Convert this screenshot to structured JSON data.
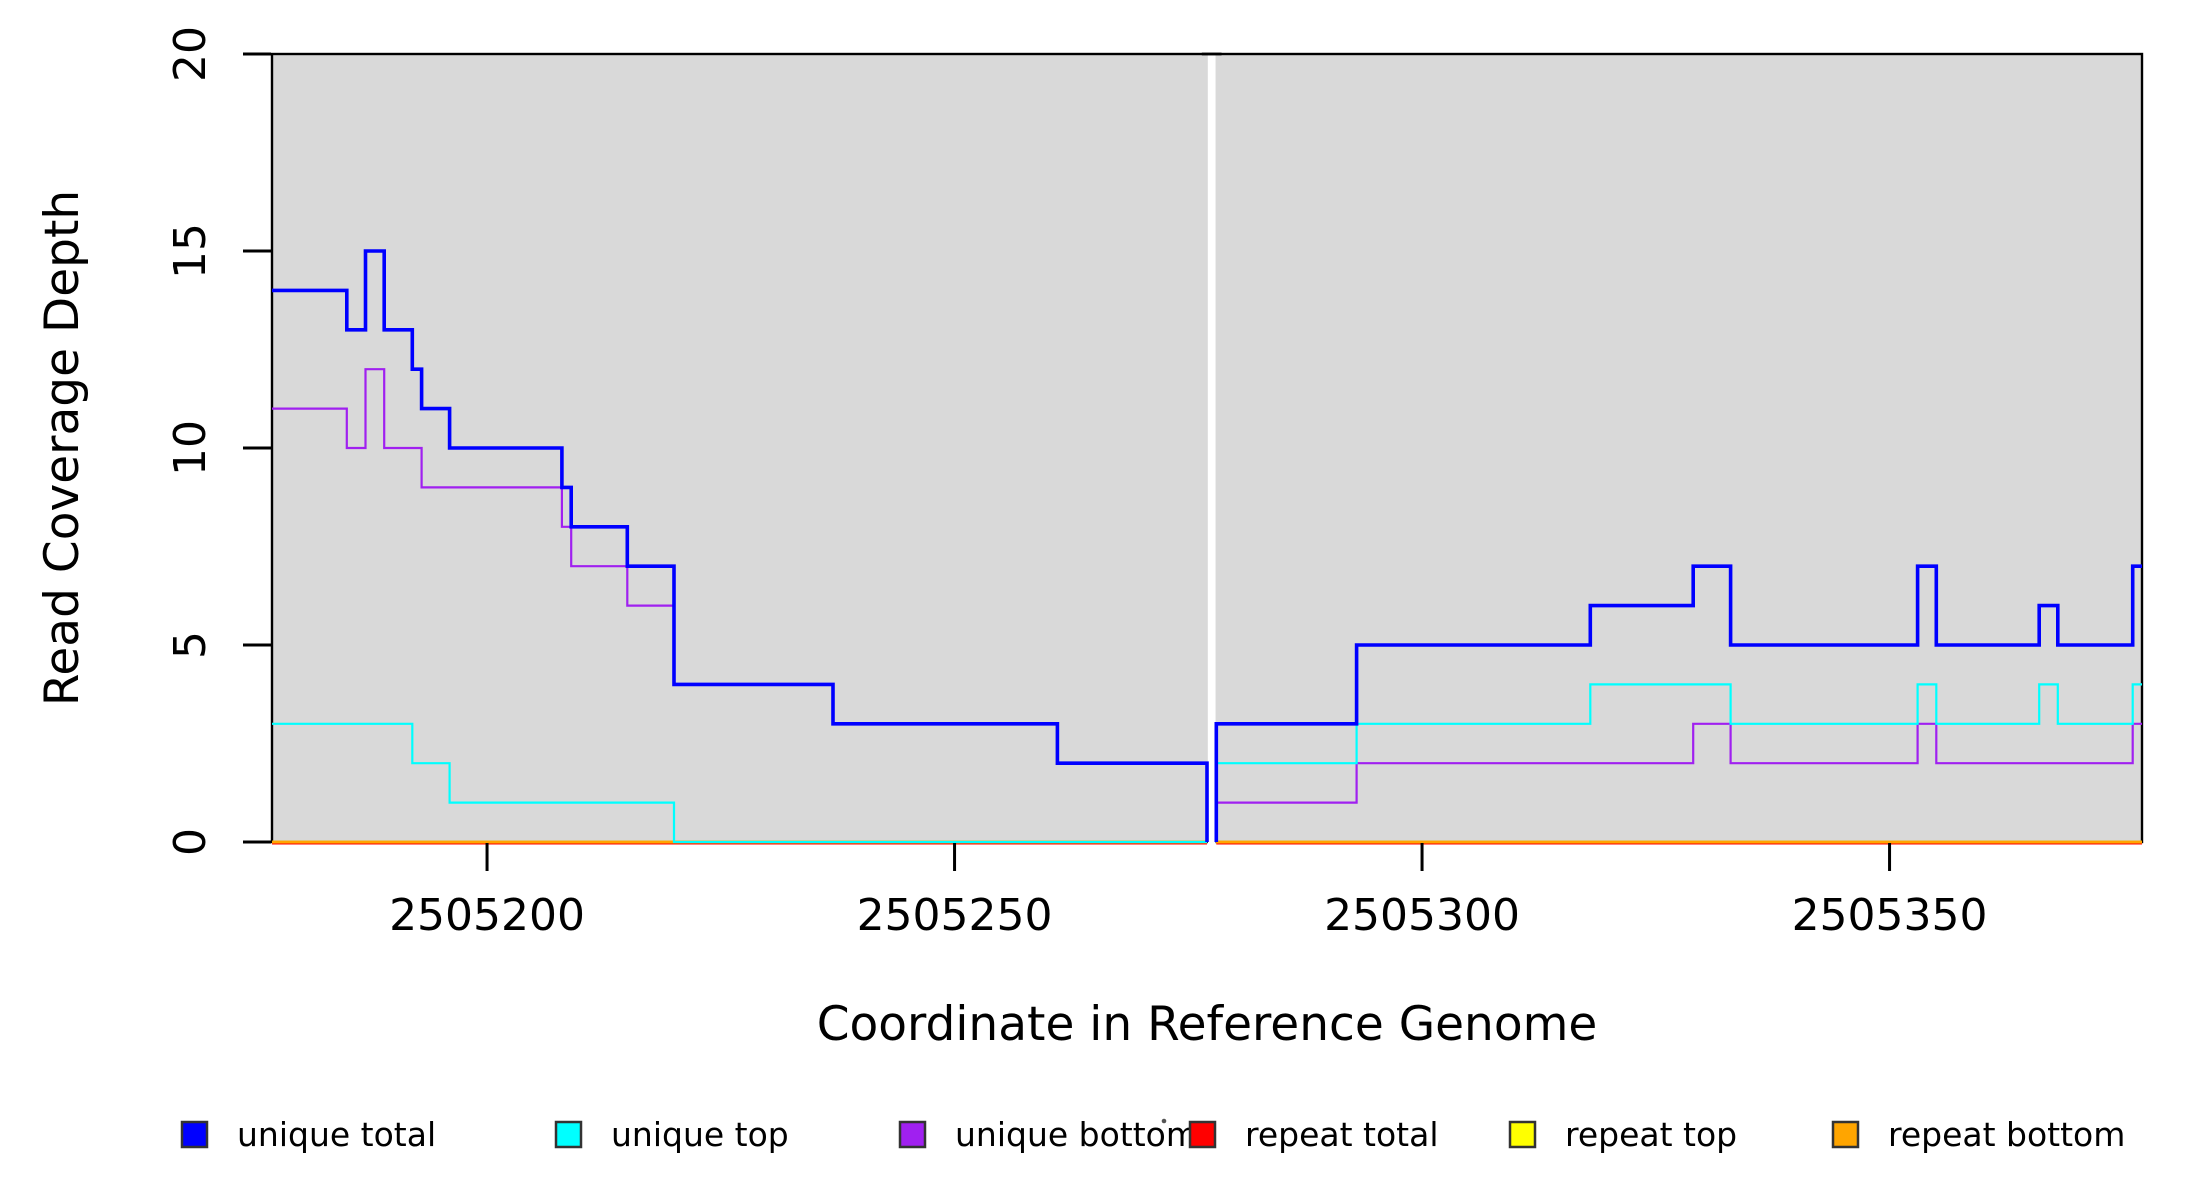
{
  "chart_data": {
    "type": "line",
    "subtype": "step-coverage",
    "title": "",
    "xlabel": "Coordinate in Reference Genome",
    "ylabel": "Read Coverage Depth",
    "xlim": [
      2505177,
      2505377
    ],
    "ylim": [
      0,
      20
    ],
    "x_ticks": [
      2505200,
      2505250,
      2505300,
      2505350
    ],
    "y_ticks": [
      0,
      5,
      10,
      15,
      20
    ],
    "grid": false,
    "plot_bg": "#D9D9D9",
    "gap": {
      "from": 2505277,
      "to": 2505278
    },
    "series": [
      {
        "name": "repeat total",
        "color": "#FF0000",
        "width": 2.5,
        "y_offset": 1.2,
        "regions": [
          {
            "segments": [
              [
                2505177,
                2505277,
                0
              ]
            ]
          },
          {
            "segments": [
              [
                2505278,
                2505377,
                0
              ]
            ]
          }
        ]
      },
      {
        "name": "repeat top",
        "color": "#FFFF00",
        "width": 2.5,
        "y_offset": 0,
        "regions": [
          {
            "segments": [
              [
                2505177,
                2505277,
                0
              ]
            ]
          },
          {
            "segments": [
              [
                2505278,
                2505377,
                0
              ]
            ]
          }
        ]
      },
      {
        "name": "repeat bottom",
        "color": "#FFA500",
        "width": 2.8,
        "y_offset": 0,
        "regions": [
          {
            "segments": [
              [
                2505177,
                2505277,
                0
              ]
            ]
          },
          {
            "segments": [
              [
                2505278,
                2505377,
                0
              ]
            ]
          }
        ]
      },
      {
        "name": "unique bottom",
        "color": "#A020F0",
        "width": 2.2,
        "y_offset": 0,
        "regions": [
          {
            "end_cap_zero": true,
            "segments": [
              [
                2505177,
                2505185,
                11
              ],
              [
                2505185,
                2505187,
                10
              ],
              [
                2505187,
                2505189,
                12
              ],
              [
                2505189,
                2505193,
                10
              ],
              [
                2505193,
                2505208,
                9
              ],
              [
                2505208,
                2505209,
                8
              ],
              [
                2505209,
                2505215,
                7
              ],
              [
                2505215,
                2505220,
                6
              ],
              [
                2505220,
                2505237,
                4
              ],
              [
                2505237,
                2505261,
                3
              ],
              [
                2505261,
                2505277,
                2
              ]
            ]
          },
          {
            "start_cap_zero": true,
            "segments": [
              [
                2505278,
                2505293,
                1
              ],
              [
                2505293,
                2505329,
                2
              ],
              [
                2505329,
                2505333,
                3
              ],
              [
                2505333,
                2505353,
                2
              ],
              [
                2505353,
                2505355,
                3
              ],
              [
                2505355,
                2505376,
                2
              ],
              [
                2505376,
                2505377,
                3
              ]
            ]
          }
        ]
      },
      {
        "name": "unique top",
        "color": "#00FFFF",
        "width": 2.2,
        "y_offset": 0,
        "regions": [
          {
            "segments": [
              [
                2505177,
                2505192,
                3
              ],
              [
                2505192,
                2505196,
                2
              ],
              [
                2505196,
                2505220,
                1
              ],
              [
                2505220,
                2505277,
                0
              ]
            ]
          },
          {
            "start_cap_zero": true,
            "segments": [
              [
                2505278,
                2505293,
                2
              ],
              [
                2505293,
                2505318,
                3
              ],
              [
                2505318,
                2505333,
                4
              ],
              [
                2505333,
                2505353,
                3
              ],
              [
                2505353,
                2505355,
                4
              ],
              [
                2505355,
                2505366,
                3
              ],
              [
                2505366,
                2505368,
                4
              ],
              [
                2505368,
                2505376,
                3
              ],
              [
                2505376,
                2505377,
                4
              ]
            ]
          }
        ]
      },
      {
        "name": "unique total",
        "color": "#0000FF",
        "width": 3.6,
        "y_offset": 0,
        "regions": [
          {
            "end_cap_zero": true,
            "segments": [
              [
                2505177,
                2505185,
                14
              ],
              [
                2505185,
                2505187,
                13
              ],
              [
                2505187,
                2505189,
                15
              ],
              [
                2505189,
                2505192,
                13
              ],
              [
                2505192,
                2505193,
                12
              ],
              [
                2505193,
                2505196,
                11
              ],
              [
                2505196,
                2505208,
                10
              ],
              [
                2505208,
                2505209,
                9
              ],
              [
                2505209,
                2505215,
                8
              ],
              [
                2505215,
                2505220,
                7
              ],
              [
                2505220,
                2505237,
                4
              ],
              [
                2505237,
                2505261,
                3
              ],
              [
                2505261,
                2505277,
                2
              ]
            ]
          },
          {
            "start_cap_zero": true,
            "segments": [
              [
                2505278,
                2505293,
                3
              ],
              [
                2505293,
                2505318,
                5
              ],
              [
                2505318,
                2505329,
                6
              ],
              [
                2505329,
                2505333,
                7
              ],
              [
                2505333,
                2505353,
                5
              ],
              [
                2505353,
                2505355,
                7
              ],
              [
                2505355,
                2505366,
                5
              ],
              [
                2505366,
                2505368,
                6
              ],
              [
                2505368,
                2505376,
                5
              ],
              [
                2505376,
                2505377,
                7
              ]
            ]
          }
        ]
      }
    ],
    "legend": {
      "position": "bottom",
      "entries": [
        {
          "label": "unique total",
          "color": "#0000FF"
        },
        {
          "label": "unique top",
          "color": "#00FFFF"
        },
        {
          "label": "unique bottom",
          "color": "#A020F0"
        },
        {
          "label": "repeat total",
          "color": "#FF0000"
        },
        {
          "label": "repeat top",
          "color": "#FFFF00"
        },
        {
          "label": "repeat bottom",
          "color": "#FFA500"
        }
      ]
    }
  }
}
